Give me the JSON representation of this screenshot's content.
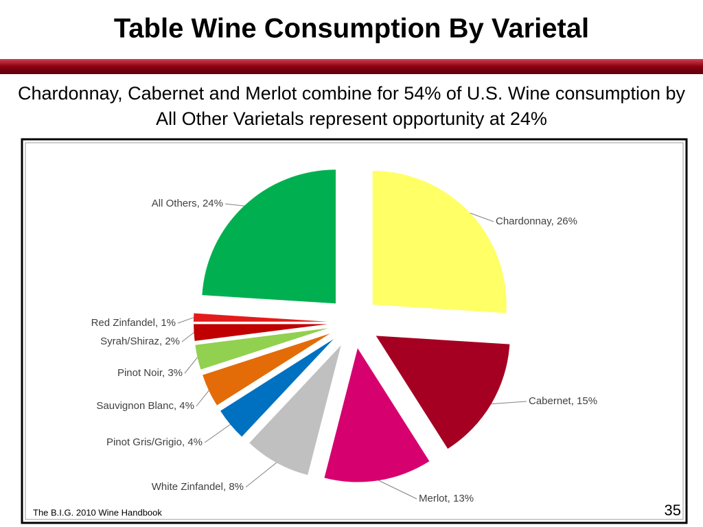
{
  "chart_data": {
    "type": "pie",
    "title": "Table Wine Consumption By Varietal",
    "subtitle": "Chardonnay, Cabernet and Merlot combine for 54% of U.S. Wine consumption by All Other Varietals represent opportunity at 24%",
    "categories": [
      "Chardonnay, 26%",
      "Cabernet, 15%",
      "Merlot, 13%",
      "White Zinfandel, 8%",
      "Pinot Gris/Grigio, 4%",
      "Sauvignon Blanc, 4%",
      "Pinot Noir, 3%",
      "Syrah/Shiraz, 2%",
      "Red Zinfandel, 1%",
      "All Others, 24%"
    ],
    "values": [
      26,
      15,
      13,
      8,
      4,
      4,
      3,
      2,
      1,
      24
    ],
    "colors": [
      "#ffff66",
      "#a50021",
      "#d6006f",
      "#c0c0c0",
      "#0070c0",
      "#e36c09",
      "#92d050",
      "#c00000",
      "#e41b1b",
      "#00b050"
    ],
    "source": "The B.I.G. 2010 Wine Handbook",
    "page_number": "35"
  }
}
